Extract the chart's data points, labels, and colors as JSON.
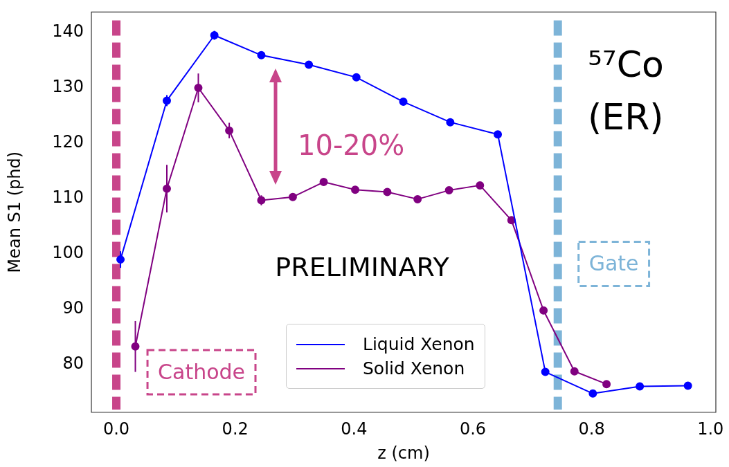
{
  "chart_data": {
    "type": "line",
    "xlabel": "z (cm)",
    "ylabel": "Mean S1 (phd)",
    "xlim": [
      -0.042,
      1.009
    ],
    "xticks": [
      {
        "value": 0,
        "label": "0.0"
      },
      0.2,
      0.4,
      0.6,
      0.8,
      {
        "value": 1,
        "label": "1.0"
      }
    ],
    "ylim": [
      71.4,
      143.7
    ],
    "yticks": [
      80,
      90,
      100,
      110,
      120,
      130,
      140
    ],
    "grid": false,
    "legend": "bottom",
    "marker": "circle",
    "line_style": "solid",
    "series": [
      {
        "name": "Liquid Xenon",
        "color": "#0000ff",
        "x": [
          0.007,
          0.085,
          0.165,
          0.244,
          0.324,
          0.404,
          0.483,
          0.562,
          0.642,
          0.722,
          0.802,
          0.881,
          0.962
        ],
        "values": [
          99.0,
          127.7,
          139.5,
          135.9,
          134.2,
          131.9,
          127.5,
          123.8,
          121.6,
          78.7,
          74.8,
          76.1,
          76.2
        ],
        "errors": [
          1.5,
          1.0,
          0.8,
          null,
          null,
          null,
          null,
          null,
          null,
          null,
          null,
          null,
          null
        ]
      },
      {
        "name": "Solid Xenon",
        "color": "#800080",
        "x": [
          0.032,
          0.085,
          0.138,
          0.19,
          0.244,
          0.297,
          0.349,
          0.402,
          0.456,
          0.507,
          0.56,
          0.612,
          0.665,
          0.719,
          0.771,
          0.825
        ],
        "values": [
          83.3,
          111.8,
          130.0,
          122.3,
          109.7,
          110.3,
          113.0,
          111.6,
          111.2,
          109.9,
          111.5,
          112.4,
          106.1,
          89.8,
          78.8,
          76.5
        ],
        "errors": [
          4.6,
          4.3,
          2.6,
          1.4,
          0.9,
          0.6,
          null,
          null,
          null,
          null,
          null,
          null,
          null,
          null,
          null,
          null
        ]
      }
    ],
    "ref_lines": [
      {
        "axis": "x",
        "value": 0,
        "label": "Cathode",
        "color": "#c8458a",
        "line_style": "dashed"
      },
      {
        "axis": "x",
        "value": 0.743,
        "label": "Gate",
        "color": "#7db4d8",
        "line_style": "dashed"
      }
    ],
    "annotations": [
      "10-20%",
      "PRELIMINARY",
      "⁵⁷Co (ER)"
    ]
  }
}
